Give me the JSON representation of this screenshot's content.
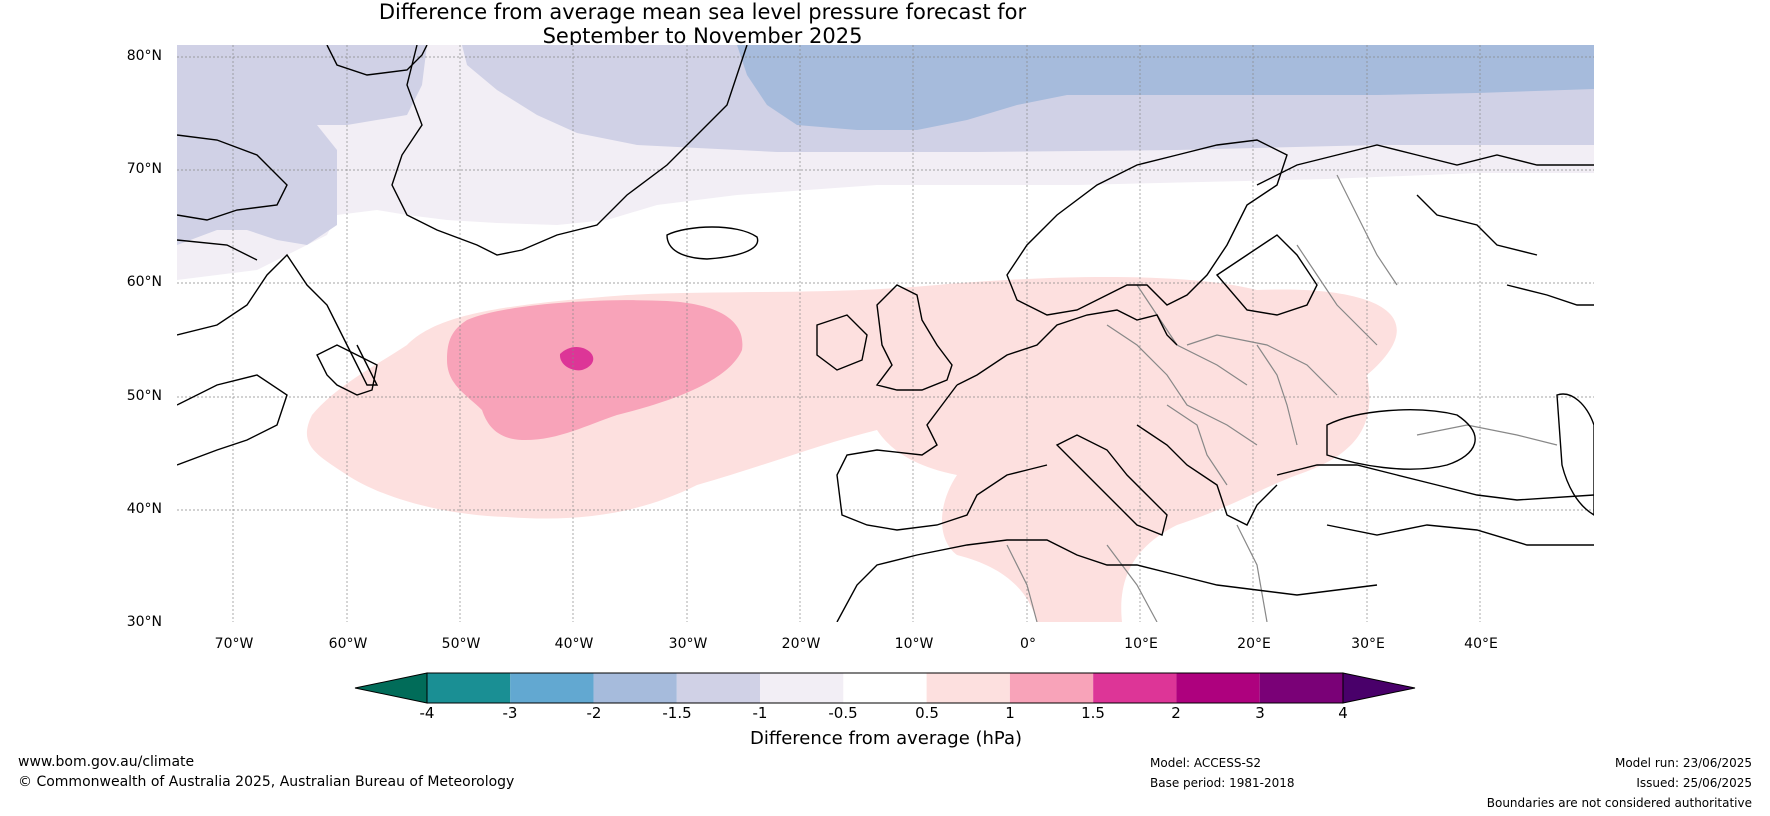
{
  "title": {
    "line1": "Difference from average mean sea level pressure forecast for",
    "line2": "September to November 2025"
  },
  "map": {
    "lat_labels": [
      "80°N",
      "70°N",
      "60°N",
      "50°N",
      "40°N",
      "30°N"
    ],
    "lon_labels": [
      "70°W",
      "60°W",
      "50°W",
      "40°W",
      "30°W",
      "20°W",
      "10°W",
      "0°",
      "10°E",
      "20°E",
      "30°E",
      "40°E"
    ],
    "regions": {
      "arctic_north_band": "-1.5 to -1",
      "greenland_sea_deep": "-2 to -1.5",
      "high_latitude_band": "-1 to -0.5",
      "north_atlantic_plume": "0.5 to 1",
      "central_atlantic_core": "1 to 1.5",
      "atlantic_peak": "1.5 to 2"
    }
  },
  "colorbar": {
    "ticks": [
      "-4",
      "-3",
      "-2",
      "-1.5",
      "-1",
      "-0.5",
      "0.5",
      "1",
      "1.5",
      "2",
      "3",
      "4"
    ],
    "colors": [
      "#1a8f94",
      "#62a8d1",
      "#a6bbdc",
      "#d0d1e6",
      "#f2eef5",
      "#ffffff",
      "#fde0df",
      "#f8a3b9",
      "#dd3597",
      "#ae017e",
      "#7a0177"
    ],
    "extend_low_color": "#016c59",
    "extend_high_color": "#49006a",
    "label": "Difference from average (hPa)"
  },
  "footer": {
    "website": "www.bom.gov.au/climate",
    "copyright": "© Commonwealth of Australia 2025, Australian Bureau of Meteorology",
    "model": "Model: ACCESS-S2",
    "base_period": "Base period: 1981-2018",
    "model_run": "Model run: 23/06/2025",
    "issued": "Issued: 25/06/2025",
    "disclaimer": "Boundaries are not considered authoritative"
  }
}
